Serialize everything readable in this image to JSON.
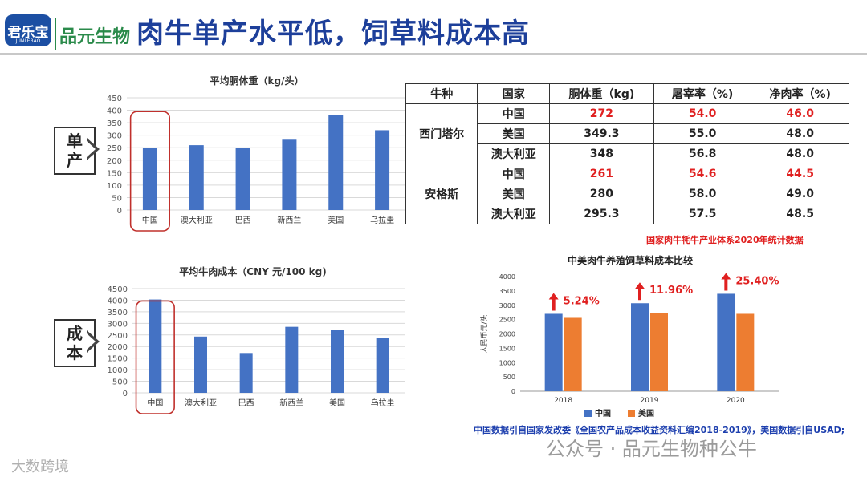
{
  "header": {
    "title": "肉牛单产水平低，饲草料成本高",
    "logo_main": "君乐宝",
    "logo_sub": "JUNLEBAO",
    "logo_brand": "品元生物"
  },
  "side_labels": {
    "yield": [
      "单",
      "产"
    ],
    "cost": [
      "成",
      "本"
    ]
  },
  "table": {
    "headers": [
      "牛种",
      "国家",
      "胴体重（kg)",
      "屠宰率（%)",
      "净肉率（%)"
    ],
    "groups": [
      {
        "breed": "西门塔尔",
        "rows": [
          {
            "country": "中国",
            "values": [
              "272",
              "54.0",
              "46.0"
            ],
            "highlight": true
          },
          {
            "country": "美国",
            "values": [
              "349.3",
              "55.0",
              "48.0"
            ],
            "highlight": false
          },
          {
            "country": "澳大利亚",
            "values": [
              "348",
              "56.8",
              "48.0"
            ],
            "highlight": false
          }
        ]
      },
      {
        "breed": "安格斯",
        "rows": [
          {
            "country": "中国",
            "values": [
              "261",
              "54.6",
              "44.5"
            ],
            "highlight": true
          },
          {
            "country": "美国",
            "values": [
              "280",
              "58.0",
              "49.0"
            ],
            "highlight": false
          },
          {
            "country": "澳大利亚",
            "values": [
              "295.3",
              "57.5",
              "48.5"
            ],
            "highlight": false
          }
        ]
      }
    ],
    "source": "国家肉牛牦牛产业体系2020年统计数据"
  },
  "chart_data": [
    {
      "type": "bar",
      "title": "平均胴体重（kg/头）",
      "categories": [
        "中国",
        "澳大利亚",
        "巴西",
        "新西兰",
        "美国",
        "乌拉圭"
      ],
      "values": [
        250,
        260,
        248,
        282,
        382,
        320
      ],
      "ylim": [
        0,
        450
      ],
      "yticks": [
        0,
        50,
        100,
        150,
        200,
        250,
        300,
        350,
        400,
        450
      ],
      "grid": true,
      "highlight_category": "中国",
      "color": "#4472c4"
    },
    {
      "type": "bar",
      "title": "平均牛肉成本（CNY 元/100 kg)",
      "categories": [
        "中国",
        "澳大利亚",
        "巴西",
        "新西兰",
        "美国",
        "乌拉圭"
      ],
      "values": [
        4030,
        2430,
        1720,
        2850,
        2700,
        2370
      ],
      "ylim": [
        0,
        4500
      ],
      "yticks": [
        0,
        500,
        1000,
        1500,
        2000,
        2500,
        3000,
        3500,
        4000,
        4500
      ],
      "grid": true,
      "highlight_category": "中国",
      "color": "#4472c4"
    },
    {
      "type": "bar",
      "title": "中美肉牛养殖饲草料成本比较",
      "ylabel": "人民币元/头",
      "categories": [
        "2018",
        "2019",
        "2020"
      ],
      "series": [
        {
          "name": "中国",
          "values": [
            2700,
            3070,
            3400
          ],
          "color": "#4472c4"
        },
        {
          "name": "美国",
          "values": [
            2560,
            2740,
            2700
          ],
          "color": "#ed7d31"
        }
      ],
      "annotations": [
        "5.24%",
        "11.96%",
        "25.40%"
      ],
      "ylim": [
        0,
        4000
      ],
      "yticks": [
        0,
        500,
        1000,
        1500,
        2000,
        2500,
        3000,
        3500,
        4000
      ],
      "grid": false,
      "legend": "bottom",
      "source": "中国数据引自国家发改委《全国农产品成本收益资料汇编2018-2019》，美国数据引自USAD;"
    }
  ],
  "watermarks": {
    "wechat": "公众号 · 品元生物种公牛",
    "corner": "大数跨境"
  }
}
